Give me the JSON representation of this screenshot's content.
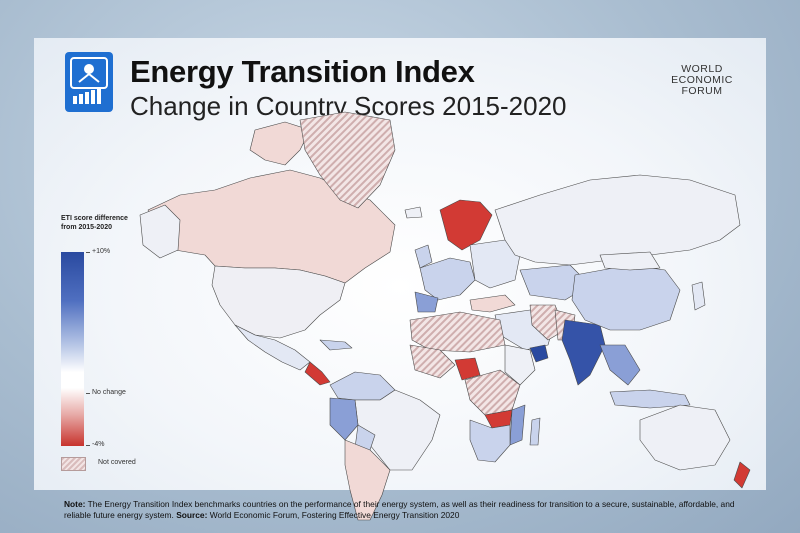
{
  "header": {
    "title": "Energy Transition Index",
    "subtitle": "Change in Country Scores 2015-2020",
    "org_logo_lines": [
      "WORLD",
      "ECONOMIC",
      "FORUM"
    ]
  },
  "legend": {
    "title": "ETI score difference from 2015-2020",
    "max_label": "+10%",
    "mid_label": "No change",
    "min_label": "-4%",
    "not_covered_label": "Not covered",
    "color_max": "#2a4aa0",
    "color_mid": "#ffffff",
    "color_min": "#c7332d"
  },
  "note": {
    "note_label": "Note:",
    "note_text": "The Energy Transition Index benchmarks countries on the performance of their energy system, as well as their readiness for transition to a secure, sustainable, affordable, and reliable future energy system.",
    "source_label": "Source:",
    "source_text": "World Economic Forum, Fostering Effective Energy Transition 2020"
  },
  "colors": {
    "accent_blue": "#1f6fd1",
    "strong_blue": "#3553a8",
    "light_blue": "#c9d3ec",
    "pale_pink": "#f1d9d6",
    "strong_red": "#d23a34",
    "not_covered_hatch": "#d9bcbc"
  }
}
